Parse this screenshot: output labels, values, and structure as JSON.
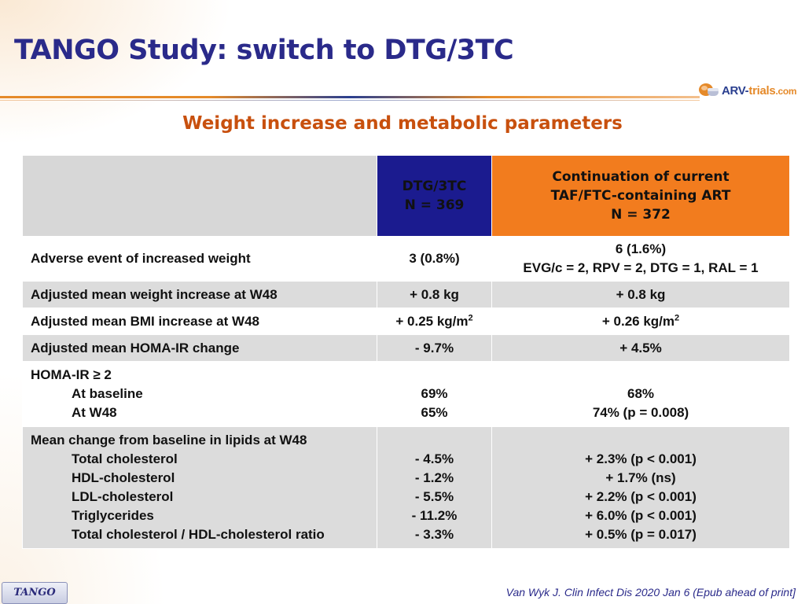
{
  "slide": {
    "title": "TANGO Study: switch to DTG/3TC",
    "subtitle": "Weight increase and metabolic parameters",
    "logo_text_main": "ARV-",
    "logo_text_accent": "trials",
    "logo_text_suffix": ".com",
    "footer_badge": "TANGO",
    "reference": "Van Wyk J. Clin Infect Dis 2020 Jan 6 (Epub ahead of print]"
  },
  "table": {
    "columns": [
      {
        "lines": [
          "DTG/3TC",
          "N = 369"
        ]
      },
      {
        "lines": [
          "Continuation of current",
          "TAF/FTC-containing ART",
          "N = 372"
        ]
      }
    ],
    "rows": [
      {
        "label_lines": [
          "Adverse event of increased weight"
        ],
        "dtg_lines": [
          "3 (0.8%)"
        ],
        "cur_lines": [
          "6 (1.6%)",
          "EVG/c = 2, RPV = 2, DTG = 1, RAL = 1"
        ]
      },
      {
        "label_lines": [
          "Adjusted mean weight increase at W48"
        ],
        "dtg_lines": [
          "+ 0.8 kg"
        ],
        "cur_lines": [
          "+ 0.8 kg"
        ]
      },
      {
        "label_lines": [
          "Adjusted mean BMI increase at W48"
        ],
        "dtg_text": "+ 0.25 kg/m",
        "cur_text": "+ 0.26 kg/m",
        "unit_sup": "2"
      },
      {
        "label_lines": [
          "Adjusted mean HOMA-IR change"
        ],
        "dtg_lines": [
          "- 9.7%"
        ],
        "cur_lines": [
          "+ 4.5%"
        ]
      },
      {
        "label_lines": [
          "HOMA-IR ≥ 2",
          "At baseline",
          "At W48"
        ],
        "dtg_lines": [
          "69%",
          "65%"
        ],
        "cur_lines": [
          "68%",
          "74% (p = 0.008)"
        ]
      },
      {
        "label_lines": [
          "Mean change from baseline in lipids at W48",
          "Total cholesterol",
          "HDL-cholesterol",
          "LDL-cholesterol",
          "Triglycerides",
          "Total cholesterol / HDL-cholesterol ratio"
        ],
        "dtg_lines": [
          "- 4.5%",
          "- 1.2%",
          "- 5.5%",
          "- 11.2%",
          "- 3.3%"
        ],
        "cur_lines": [
          "+ 2.3% (p < 0.001)",
          "+ 1.7% (ns)",
          "+ 2.2% (p < 0.001)",
          "+ 6.0% (p < 0.001)",
          "+ 0.5% (p = 0.017)"
        ]
      }
    ]
  },
  "colors": {
    "title": "#2a2a8a",
    "subtitle": "#c8500e",
    "dtg_header": "#1b1b8f",
    "current_header": "#f27c1e",
    "row_shaded": "#dcdcdc"
  }
}
